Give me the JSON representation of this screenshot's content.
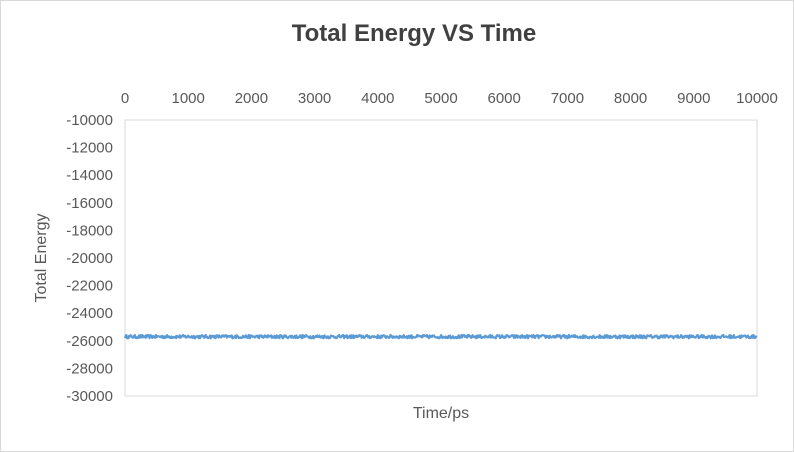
{
  "chart_data": {
    "type": "line",
    "title": "Total Energy VS Time",
    "xlabel": "Time/ps",
    "ylabel": "Total Energy",
    "x_axis_position": "top",
    "xlim": [
      0,
      10000
    ],
    "ylim": [
      -30000,
      -10000
    ],
    "x_ticks": [
      "0",
      "1000",
      "2000",
      "3000",
      "4000",
      "5000",
      "6000",
      "7000",
      "8000",
      "9000",
      "10000"
    ],
    "y_ticks": [
      "-10000",
      "-12000",
      "-14000",
      "-16000",
      "-18000",
      "-20000",
      "-22000",
      "-24000",
      "-26000",
      "-28000",
      "-30000"
    ],
    "grid": false,
    "legend": "none",
    "series": [
      {
        "color": "#5b9bd5",
        "mean": -25700,
        "fluctuation": 120,
        "x": [
          0,
          10000
        ]
      }
    ]
  }
}
